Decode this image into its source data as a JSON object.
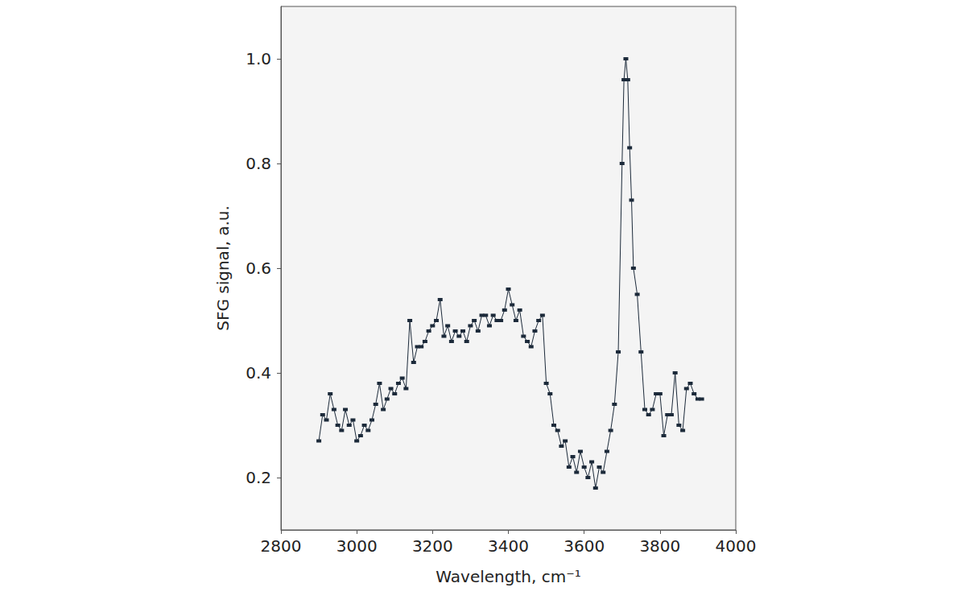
{
  "chart_data": {
    "type": "line",
    "xlabel": "Wavelength, cm⁻¹",
    "ylabel": "SFG signal, a.u.",
    "x": [
      2900,
      2910,
      2920,
      2930,
      2940,
      2950,
      2960,
      2970,
      2980,
      2990,
      3000,
      3010,
      3020,
      3030,
      3040,
      3050,
      3060,
      3070,
      3080,
      3090,
      3100,
      3110,
      3120,
      3130,
      3140,
      3150,
      3160,
      3170,
      3180,
      3190,
      3200,
      3210,
      3220,
      3230,
      3240,
      3250,
      3260,
      3270,
      3280,
      3290,
      3300,
      3310,
      3320,
      3330,
      3340,
      3350,
      3360,
      3370,
      3380,
      3390,
      3400,
      3410,
      3420,
      3430,
      3440,
      3450,
      3460,
      3470,
      3480,
      3490,
      3500,
      3510,
      3520,
      3530,
      3540,
      3550,
      3560,
      3570,
      3580,
      3590,
      3600,
      3610,
      3620,
      3630,
      3640,
      3650,
      3660,
      3670,
      3680,
      3690,
      3700,
      3705,
      3710,
      3715,
      3720,
      3725,
      3730,
      3740,
      3750,
      3760,
      3770,
      3780,
      3790,
      3800,
      3810,
      3820,
      3830,
      3840,
      3850,
      3860,
      3870,
      3880,
      3890,
      3900,
      3910
    ],
    "values": [
      0.27,
      0.32,
      0.31,
      0.36,
      0.33,
      0.3,
      0.29,
      0.33,
      0.3,
      0.31,
      0.27,
      0.28,
      0.3,
      0.29,
      0.31,
      0.34,
      0.38,
      0.33,
      0.35,
      0.37,
      0.36,
      0.38,
      0.39,
      0.37,
      0.5,
      0.42,
      0.45,
      0.45,
      0.46,
      0.48,
      0.49,
      0.5,
      0.54,
      0.47,
      0.49,
      0.46,
      0.48,
      0.47,
      0.48,
      0.46,
      0.49,
      0.5,
      0.48,
      0.51,
      0.51,
      0.49,
      0.51,
      0.5,
      0.5,
      0.52,
      0.56,
      0.53,
      0.5,
      0.52,
      0.47,
      0.46,
      0.45,
      0.48,
      0.5,
      0.51,
      0.38,
      0.36,
      0.3,
      0.29,
      0.26,
      0.27,
      0.22,
      0.24,
      0.21,
      0.25,
      0.22,
      0.2,
      0.23,
      0.18,
      0.22,
      0.21,
      0.25,
      0.29,
      0.34,
      0.44,
      0.8,
      0.96,
      1.0,
      0.96,
      0.83,
      0.73,
      0.6,
      0.55,
      0.44,
      0.33,
      0.32,
      0.33,
      0.36,
      0.36,
      0.28,
      0.32,
      0.32,
      0.4,
      0.3,
      0.29,
      0.37,
      0.38,
      0.36,
      0.35,
      0.35
    ],
    "color": "#1c2a3a",
    "marker": "square",
    "line_style": "solid",
    "xlim": [
      2800,
      4000
    ],
    "xticks": [
      2800,
      3000,
      3200,
      3400,
      3600,
      3800,
      4000
    ],
    "ylim": [
      0.1,
      1.1
    ],
    "yticks": [
      0.2,
      0.4,
      0.6,
      0.8,
      {
        "value": 1.0,
        "label": "1.0"
      }
    ],
    "grid": false
  }
}
